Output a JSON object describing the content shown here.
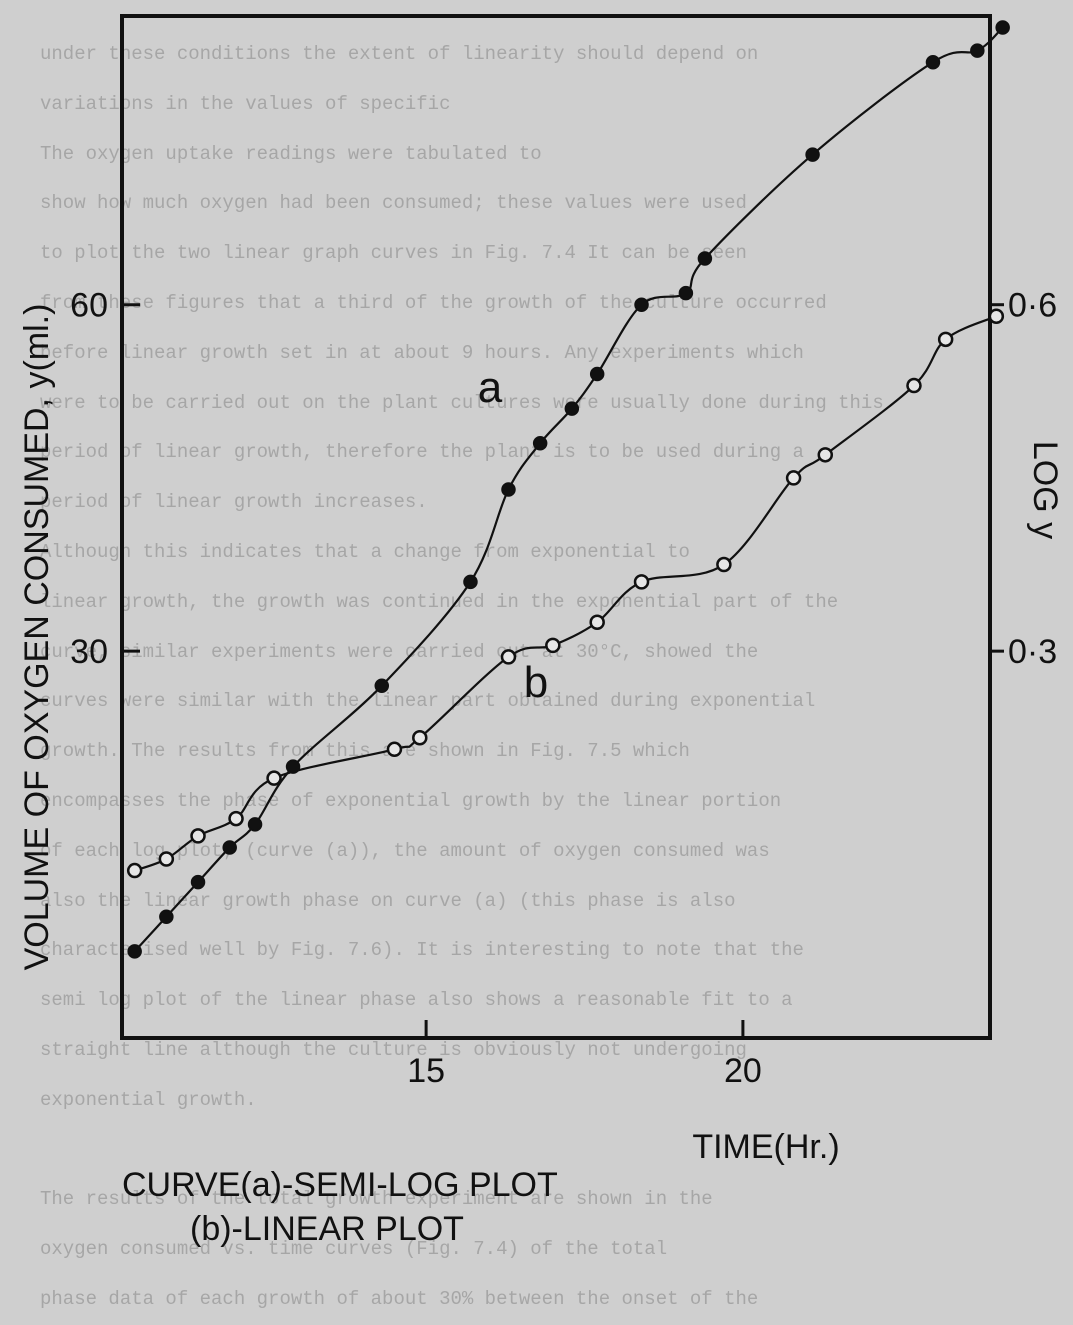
{
  "background_text": {
    "lines": [
      "under these conditions the extent of linearity should depend on",
      "variations in the values of specific",
      "The oxygen uptake readings were tabulated to",
      "show how much oxygen had been consumed; these values were used",
      "to plot the two linear graph curves in Fig. 7.4 It can be seen",
      "from these figures that a third of the growth of the culture occurred",
      "before linear growth set in at about 9 hours. Any experiments which",
      "were to be carried out on the plant cultures were usually done during this",
      "period of linear growth, therefore the plant is to be used during a",
      "period of linear growth increases.",
      "Although this indicates that a change from exponential to",
      "linear growth, the growth was continued in the exponential part of the",
      "curve, similar experiments were carried out at 30°C, showed the",
      "curves were similar with the linear part obtained during exponential",
      "growth. The results from this are shown in Fig. 7.5 which",
      "encompasses the phase of exponential growth by the linear portion",
      "of each log plot; (curve (a)), the amount of oxygen consumed was",
      "also the linear growth phase on curve (a) (this phase is also",
      "characterised well by Fig. 7.6). It is interesting to note that the",
      "semi log plot of the linear phase also shows a reasonable fit to a",
      "straight line although the culture is obviously not undergoing",
      "exponential growth.",
      "",
      "The results of the total growth experiment are shown in the",
      "oxygen consumed vs. time curves (Fig. 7.4) of the total",
      "phase data of each growth of about 30% between the onset of the"
    ]
  },
  "chart_data": {
    "type": "line",
    "xlabel": "TIME(Hr.)",
    "ylabel": "VOLUME OF OXYGEN CONSUMED, y(ml.)",
    "ylabel_right": "LOG y",
    "x_ticks": [
      15,
      20
    ],
    "y_ticks": [
      30,
      60
    ],
    "y_tick_labels": [
      "30",
      "60"
    ],
    "y_right_ticks": [
      0.3,
      0.6
    ],
    "y_right_tick_labels": [
      "0·3",
      "0·6"
    ],
    "xlim": [
      10.2,
      23.9
    ],
    "ylim": [
      -3.5,
      85
    ],
    "y_right_lim": [
      -0.035,
      0.85
    ],
    "grid": false,
    "series": [
      {
        "name": "a",
        "marker": "filled-circle",
        "axis": "right",
        "x": [
          10.4,
          10.9,
          11.4,
          11.9,
          12.3,
          12.9,
          14.3,
          15.7,
          16.3,
          16.8,
          17.3,
          17.7,
          18.4,
          19.1,
          19.4,
          21.1,
          23.0,
          23.7,
          24.1
        ],
        "y": [
          0.04,
          0.07,
          0.1,
          0.13,
          0.15,
          0.2,
          0.27,
          0.36,
          0.44,
          0.48,
          0.51,
          0.54,
          0.6,
          0.61,
          0.64,
          0.73,
          0.81,
          0.82,
          0.84
        ]
      },
      {
        "name": "b",
        "marker": "open-circle",
        "axis": "left",
        "x": [
          10.4,
          10.9,
          11.4,
          12.0,
          12.6,
          14.5,
          14.9,
          16.3,
          17.0,
          17.7,
          18.4,
          19.7,
          20.8,
          21.3,
          22.7,
          23.2,
          24.0
        ],
        "y": [
          11.0,
          12.0,
          14.0,
          15.5,
          19.0,
          21.5,
          22.5,
          29.5,
          30.5,
          32.5,
          36.0,
          37.5,
          45.0,
          47.0,
          53.0,
          57.0,
          59.0
        ]
      }
    ],
    "caption": {
      "line1": "CURVE(a)-SEMI-LOG PLOT",
      "line2": "(b)-LINEAR PLOT"
    }
  }
}
